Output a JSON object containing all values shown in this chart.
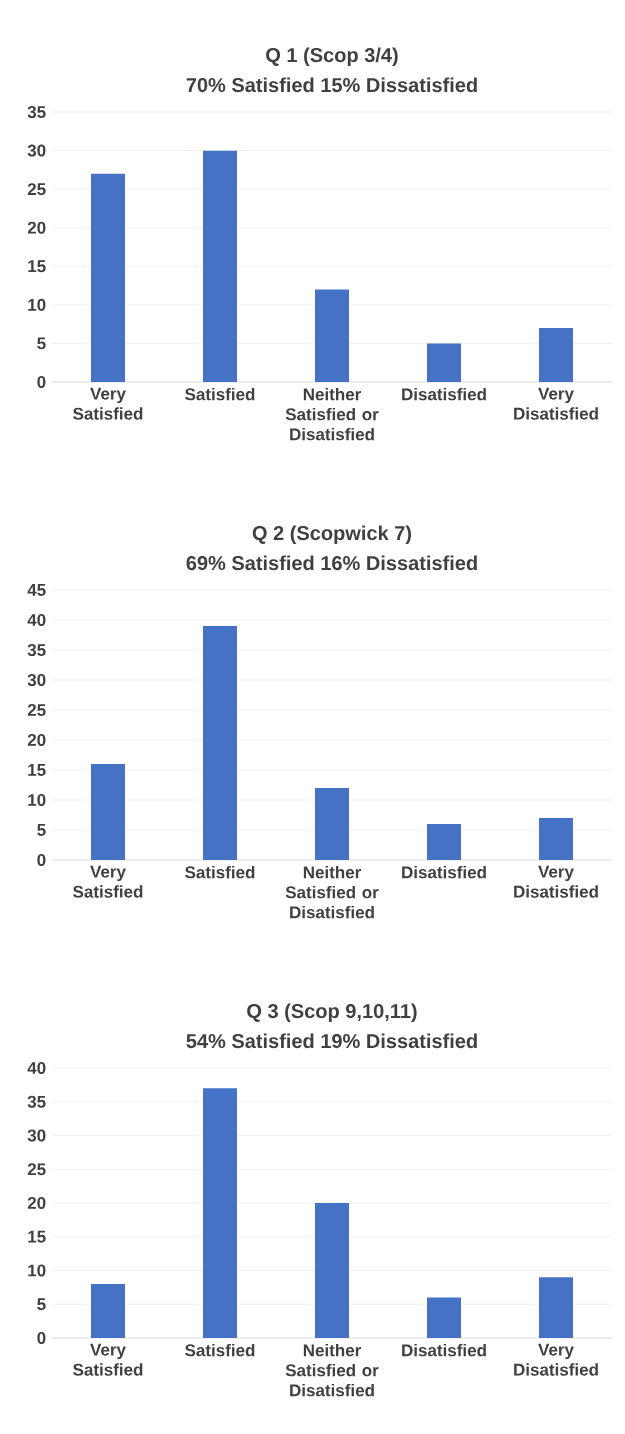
{
  "chart_data": [
    {
      "type": "bar",
      "title": "Q 1 (Scop 3/4)",
      "subtitle": "70% Satisfied 15% Dissatisfied",
      "categories": [
        "Very Satisfied",
        "Satisfied",
        "Neither Satisfied or Disatisfied",
        "Disatisfied",
        "Very Disatisfied"
      ],
      "values": [
        27,
        30,
        12,
        5,
        7
      ],
      "color": "#4472c4",
      "ylim": [
        0,
        35
      ],
      "yticks": [
        0,
        5,
        10,
        15,
        20,
        25,
        30,
        35
      ],
      "grid": "y"
    },
    {
      "type": "bar",
      "title": "Q 2 (Scopwick 7)",
      "subtitle": "69% Satisfied 16% Dissatisfied",
      "categories": [
        "Very Satisfied",
        "Satisfied",
        "Neither Satisfied or Disatisfied",
        "Disatisfied",
        "Very Disatisfied"
      ],
      "values": [
        16,
        39,
        12,
        6,
        7
      ],
      "color": "#4472c4",
      "ylim": [
        0,
        45
      ],
      "yticks": [
        0,
        5,
        10,
        15,
        20,
        25,
        30,
        35,
        40,
        45
      ],
      "grid": "y"
    },
    {
      "type": "bar",
      "title": "Q 3 (Scop 9,10,11)",
      "subtitle": "54% Satisfied 19% Dissatisfied",
      "categories": [
        "Very Satisfied",
        "Satisfied",
        "Neither Satisfied or Disatisfied",
        "Disatisfied",
        "Very Disatisfied"
      ],
      "values": [
        8,
        37,
        20,
        6,
        9
      ],
      "color": "#4472c4",
      "ylim": [
        0,
        40
      ],
      "yticks": [
        0,
        5,
        10,
        15,
        20,
        25,
        30,
        35,
        40
      ],
      "grid": "y"
    }
  ]
}
